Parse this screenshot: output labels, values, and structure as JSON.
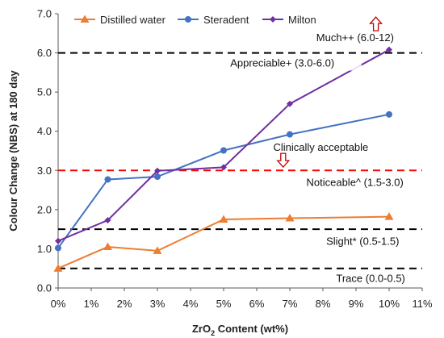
{
  "chart_data": {
    "type": "line",
    "x": [
      0,
      1.5,
      3,
      5,
      7,
      10
    ],
    "series": [
      {
        "name": "Distilled water",
        "values": [
          0.5,
          1.05,
          0.95,
          1.75,
          1.78,
          1.82
        ],
        "color": "#ed7d31",
        "marker": "triangle"
      },
      {
        "name": "Steradent",
        "values": [
          1.02,
          2.77,
          2.84,
          3.51,
          3.92,
          4.43
        ],
        "color": "#4472c4",
        "marker": "circle"
      },
      {
        "name": "Milton",
        "values": [
          1.2,
          1.73,
          2.99,
          3.08,
          4.7,
          6.08
        ],
        "color": "#7030a0",
        "marker": "diamond"
      }
    ],
    "xlabel": {
      "base": "ZrO",
      "sub": "2",
      "rest": " Content (wt%)"
    },
    "ylabel": "Colour Change (NBS) at 180 day",
    "xlim": [
      0,
      11
    ],
    "ylim": [
      0,
      7
    ],
    "xticks": [
      0,
      1,
      2,
      3,
      4,
      5,
      6,
      7,
      8,
      9,
      10,
      11
    ],
    "xtick_labels": [
      "0%",
      "1%",
      "2%",
      "3%",
      "4%",
      "5%",
      "6%",
      "7%",
      "8%",
      "9%",
      "10%",
      "11%"
    ],
    "yticks": [
      0,
      1,
      2,
      3,
      4,
      5,
      6,
      7
    ],
    "ytick_labels": [
      "0.0",
      "1.0",
      "2.0",
      "3.0",
      "4.0",
      "5.0",
      "6.0",
      "7.0"
    ],
    "grid": false,
    "legend_position": "top",
    "reference_lines": [
      {
        "y": 0.5,
        "color": "#000000"
      },
      {
        "y": 1.5,
        "color": "#000000"
      },
      {
        "y": 3.0,
        "color": "#ff0000"
      },
      {
        "y": 6.0,
        "color": "#000000"
      }
    ],
    "annotations": [
      {
        "text": "Much++ (6.0-12)",
        "x": 7.8,
        "y": 6.3
      },
      {
        "text": "Appreciable+ (3.0-6.0)",
        "x": 5.2,
        "y": 5.65
      },
      {
        "text": "Clinically acceptable",
        "x": 6.5,
        "y": 3.5
      },
      {
        "text": "Noticeable^ (1.5-3.0)",
        "x": 7.5,
        "y": 2.6
      },
      {
        "text": "Slight* (0.5-1.5)",
        "x": 8.1,
        "y": 1.1
      },
      {
        "text": "Trace (0.0-0.5)",
        "x": 8.4,
        "y": 0.15
      }
    ],
    "arrows": [
      {
        "direction": "up",
        "x": 9.6,
        "y": 6.75,
        "color": "#c00000"
      },
      {
        "direction": "down",
        "x": 6.8,
        "y": 3.25,
        "color": "#c00000"
      }
    ]
  }
}
